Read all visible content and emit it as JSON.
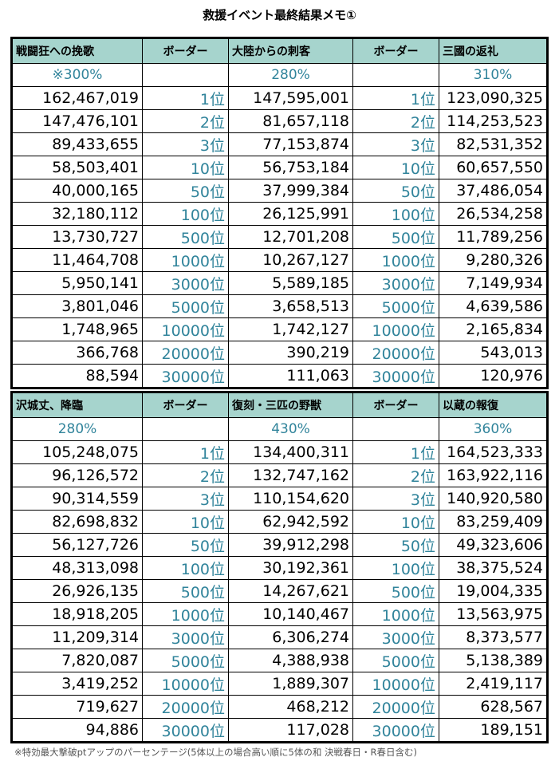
{
  "title": "救援イベント最終結果メモ①",
  "footnote": "※特効最大撃破ptアップのパーセンテージ(5体以上の場合高い順に5体の和 決戦春日・R春日含む)",
  "border_header": "ボーダー",
  "ranks": [
    "1位",
    "2位",
    "3位",
    "10位",
    "50位",
    "100位",
    "500位",
    "1000位",
    "3000位",
    "5000位",
    "10000位",
    "20000位",
    "30000位"
  ],
  "tables": [
    {
      "events": [
        {
          "name": "戦闘狂への挽歌",
          "percent": "※300%",
          "scores": [
            "162,467,019",
            "147,476,101",
            "89,433,655",
            "58,503,401",
            "40,000,165",
            "32,180,112",
            "13,730,727",
            "11,464,708",
            "5,950,141",
            "3,801,046",
            "1,748,965",
            "366,768",
            "88,594"
          ]
        },
        {
          "name": "大陸からの刺客",
          "percent": "280%",
          "scores": [
            "147,595,001",
            "81,657,118",
            "77,153,874",
            "56,753,184",
            "37,999,384",
            "26,125,991",
            "12,701,208",
            "10,267,127",
            "5,589,185",
            "3,658,513",
            "1,742,127",
            "390,219",
            "111,063"
          ]
        },
        {
          "name": "三國の返礼",
          "percent": "310%",
          "scores": [
            "123,090,325",
            "114,253,523",
            "82,531,352",
            "60,657,550",
            "37,486,054",
            "26,534,258",
            "11,789,256",
            "9,280,326",
            "7,149,934",
            "4,639,586",
            "2,165,834",
            "543,013",
            "120,976"
          ]
        }
      ]
    },
    {
      "events": [
        {
          "name": "沢城丈、降臨",
          "percent": "280%",
          "scores": [
            "105,248,075",
            "96,126,572",
            "90,314,559",
            "82,698,832",
            "56,127,726",
            "48,313,098",
            "26,926,135",
            "18,918,205",
            "11,209,314",
            "7,820,087",
            "3,419,252",
            "719,627",
            "94,886"
          ]
        },
        {
          "name": "復刻・三匹の野獣",
          "percent": "430%",
          "scores": [
            "134,400,311",
            "132,747,162",
            "110,154,620",
            "62,942,592",
            "39,912,298",
            "30,192,361",
            "14,267,621",
            "10,140,467",
            "6,306,274",
            "4,388,938",
            "1,889,307",
            "468,212",
            "117,028"
          ]
        },
        {
          "name": "以蔵の報復",
          "percent": "360%",
          "scores": [
            "164,523,333",
            "163,922,116",
            "140,920,580",
            "83,259,409",
            "49,323,606",
            "38,375,524",
            "19,004,335",
            "13,563,975",
            "8,373,577",
            "5,138,389",
            "2,419,117",
            "628,567",
            "189,151"
          ]
        }
      ]
    }
  ],
  "colors": {
    "header_bg": "#a6d4cd",
    "accent_text": "#31849b"
  }
}
